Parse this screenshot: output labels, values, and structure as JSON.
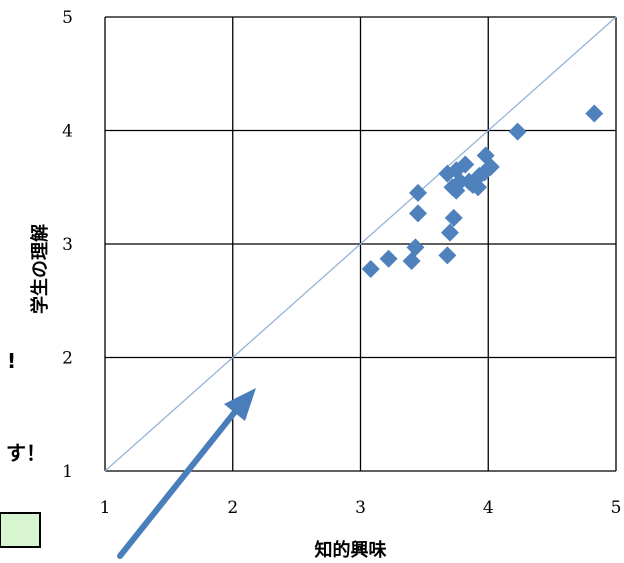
{
  "chart_data": {
    "type": "scatter",
    "title": "",
    "xlabel": "知的興味",
    "ylabel": "学生の理解",
    "xlim": [
      1,
      5
    ],
    "ylim": [
      1,
      5
    ],
    "x_ticks": [
      1,
      2,
      3,
      4,
      5
    ],
    "y_ticks": [
      1,
      2,
      3,
      4,
      5
    ],
    "grid": true,
    "reference_line": "y = x",
    "marker": "diamond",
    "series": [
      {
        "color": "#4f81bd",
        "points": [
          [
            3.08,
            2.78
          ],
          [
            3.22,
            2.87
          ],
          [
            3.4,
            2.85
          ],
          [
            3.43,
            2.97
          ],
          [
            3.45,
            3.45
          ],
          [
            3.45,
            3.27
          ],
          [
            3.68,
            2.9
          ],
          [
            3.7,
            3.1
          ],
          [
            3.73,
            3.23
          ],
          [
            3.68,
            3.62
          ],
          [
            3.72,
            3.5
          ],
          [
            3.75,
            3.47
          ],
          [
            3.75,
            3.65
          ],
          [
            3.78,
            3.55
          ],
          [
            3.82,
            3.7
          ],
          [
            3.85,
            3.55
          ],
          [
            3.88,
            3.52
          ],
          [
            3.92,
            3.5
          ],
          [
            3.93,
            3.6
          ],
          [
            3.97,
            3.63
          ],
          [
            3.98,
            3.78
          ],
          [
            4.02,
            3.68
          ],
          [
            4.23,
            3.99
          ],
          [
            4.83,
            4.15
          ]
        ]
      }
    ]
  },
  "fragments": {
    "left_mark_1": "!",
    "left_mark_2": "す！"
  },
  "colors": {
    "arrow": "#4a7ebb",
    "note_box_border": "#000000",
    "note_box_fill": "#d7f5d0",
    "diagonal": "#95b3d7"
  }
}
